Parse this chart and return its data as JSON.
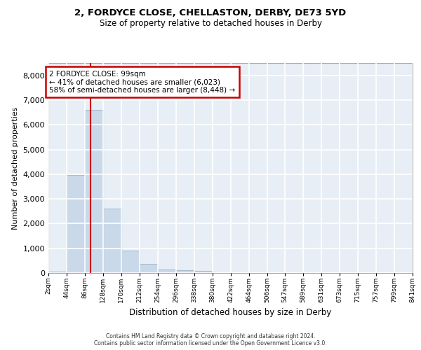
{
  "title1": "2, FORDYCE CLOSE, CHELLASTON, DERBY, DE73 5YD",
  "title2": "Size of property relative to detached houses in Derby",
  "xlabel": "Distribution of detached houses by size in Derby",
  "ylabel": "Number of detached properties",
  "bar_color": "#c9d9ea",
  "bar_edge_color": "#a8bdd0",
  "background_color": "#e8eef5",
  "grid_color": "#ffffff",
  "red_line_x": 99,
  "annotation_text": "2 FORDYCE CLOSE: 99sqm\n← 41% of detached houses are smaller (6,023)\n58% of semi-detached houses are larger (8,448) →",
  "annotation_box_color": "#ffffff",
  "annotation_box_edge": "#cc0000",
  "footer1": "Contains HM Land Registry data © Crown copyright and database right 2024.",
  "footer2": "Contains public sector information licensed under the Open Government Licence v3.0.",
  "bin_edges": [
    2,
    44,
    86,
    128,
    170,
    212,
    254,
    296,
    338,
    380,
    422,
    464,
    506,
    547,
    589,
    631,
    673,
    715,
    757,
    799,
    841
  ],
  "bin_counts": [
    50,
    3980,
    6600,
    2600,
    900,
    370,
    130,
    120,
    75,
    0,
    0,
    0,
    0,
    0,
    0,
    0,
    0,
    0,
    0,
    0
  ],
  "ylim": [
    0,
    8500
  ],
  "yticks": [
    0,
    1000,
    2000,
    3000,
    4000,
    5000,
    6000,
    7000,
    8000
  ],
  "tick_labels": [
    "2sqm",
    "44sqm",
    "86sqm",
    "128sqm",
    "170sqm",
    "212sqm",
    "254sqm",
    "296sqm",
    "338sqm",
    "380sqm",
    "422sqm",
    "464sqm",
    "506sqm",
    "547sqm",
    "589sqm",
    "631sqm",
    "673sqm",
    "715sqm",
    "757sqm",
    "799sqm",
    "841sqm"
  ]
}
